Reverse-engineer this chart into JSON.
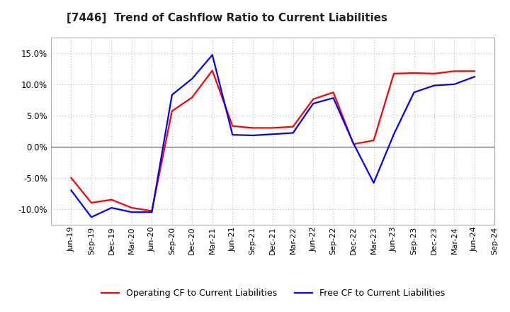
{
  "title": "[7446]  Trend of Cashflow Ratio to Current Liabilities",
  "x_labels": [
    "Jun-19",
    "Sep-19",
    "Dec-19",
    "Mar-20",
    "Jun-20",
    "Sep-20",
    "Dec-20",
    "Mar-21",
    "Jun-21",
    "Sep-21",
    "Dec-21",
    "Mar-22",
    "Jun-22",
    "Sep-22",
    "Dec-22",
    "Mar-23",
    "Jun-23",
    "Sep-23",
    "Dec-23",
    "Mar-24",
    "Jun-24",
    "Sep-24"
  ],
  "operating_cf": [
    -5.0,
    -9.0,
    -8.5,
    -9.8,
    -10.3,
    5.7,
    7.9,
    12.2,
    3.3,
    3.0,
    3.0,
    3.2,
    7.6,
    8.7,
    0.4,
    1.0,
    11.7,
    11.8,
    11.7,
    12.1,
    12.1,
    null
  ],
  "free_cf": [
    -7.0,
    -11.3,
    -9.8,
    -10.5,
    -10.5,
    8.3,
    10.9,
    14.7,
    1.9,
    1.8,
    2.0,
    2.2,
    6.9,
    7.8,
    0.5,
    -5.8,
    2.0,
    8.7,
    9.8,
    10.0,
    11.2,
    null
  ],
  "operating_color": "#ff0000",
  "free_color": "#0000ff",
  "ylim_min": -12.5,
  "ylim_max": 17.5,
  "yticks": [
    -10.0,
    -5.0,
    0.0,
    5.0,
    10.0,
    15.0
  ],
  "background_color": "#ffffff",
  "plot_bg_color": "#ffffff",
  "grid_color": "#aaaaaa",
  "zero_line_color": "#666666",
  "legend_operating": "Operating CF to Current Liabilities",
  "legend_free": "Free CF to Current Liabilities",
  "title_fontsize": 11,
  "tick_fontsize": 8,
  "legend_fontsize": 9,
  "line_width": 1.6
}
